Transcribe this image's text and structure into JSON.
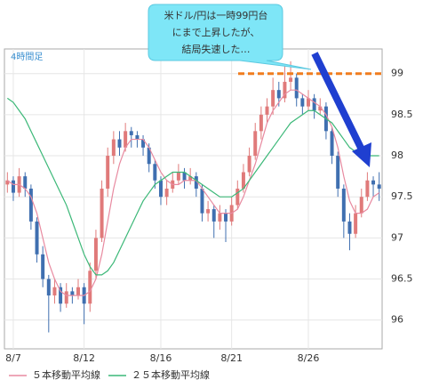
{
  "chart_data": {
    "type": "candlestick",
    "timeframe_label": "4時間足",
    "annotation": [
      "米ドル/円は一時99円台",
      "にまで上昇したが、",
      "結局失速した…"
    ],
    "reference_line": {
      "value": 99,
      "color": "#f07c1e"
    },
    "up_color": "#e07a7a",
    "down_color": "#3f6fb0",
    "categories": [
      null,
      "8/7",
      null,
      null,
      null,
      null,
      null,
      null,
      null,
      null,
      null,
      null,
      null,
      "8/12",
      null,
      null,
      null,
      null,
      null,
      null,
      null,
      null,
      null,
      null,
      null,
      null,
      "8/16",
      null,
      null,
      null,
      null,
      null,
      null,
      null,
      null,
      null,
      null,
      null,
      "8/21",
      null,
      null,
      null,
      null,
      null,
      null,
      null,
      null,
      null,
      null,
      null,
      null,
      "8/26",
      null,
      null,
      null,
      null,
      null,
      null,
      null,
      null,
      null,
      null,
      null,
      null
    ],
    "ohlc": [
      [
        97.65,
        97.8,
        97.55,
        97.7
      ],
      [
        97.7,
        97.75,
        97.45,
        97.55
      ],
      [
        97.55,
        97.85,
        97.5,
        97.75
      ],
      [
        97.75,
        97.8,
        97.5,
        97.6
      ],
      [
        97.6,
        97.65,
        97.1,
        97.2
      ],
      [
        97.2,
        97.25,
        96.7,
        96.8
      ],
      [
        96.8,
        96.9,
        96.4,
        96.5
      ],
      [
        96.5,
        96.55,
        95.85,
        96.3
      ],
      [
        96.3,
        96.5,
        96.2,
        96.4
      ],
      [
        96.4,
        96.45,
        96.1,
        96.2
      ],
      [
        96.2,
        96.45,
        96.15,
        96.35
      ],
      [
        96.35,
        96.4,
        96.2,
        96.3
      ],
      [
        96.3,
        96.5,
        96.25,
        96.4
      ],
      [
        96.4,
        96.45,
        95.95,
        96.2
      ],
      [
        96.2,
        96.7,
        96.1,
        96.6
      ],
      [
        96.6,
        97.1,
        96.5,
        97.0
      ],
      [
        97.0,
        97.7,
        96.95,
        97.6
      ],
      [
        97.6,
        98.1,
        97.5,
        98.0
      ],
      [
        98.0,
        98.3,
        97.9,
        98.2
      ],
      [
        98.2,
        98.3,
        98.0,
        98.1
      ],
      [
        98.1,
        98.4,
        98.05,
        98.3
      ],
      [
        98.3,
        98.35,
        98.1,
        98.25
      ],
      [
        98.25,
        98.3,
        98.1,
        98.2
      ],
      [
        98.2,
        98.25,
        98.0,
        98.1
      ],
      [
        98.1,
        98.15,
        97.8,
        97.9
      ],
      [
        97.9,
        97.95,
        97.6,
        97.7
      ],
      [
        97.7,
        97.75,
        97.4,
        97.5
      ],
      [
        97.5,
        97.7,
        97.4,
        97.6
      ],
      [
        97.6,
        97.8,
        97.55,
        97.7
      ],
      [
        97.7,
        97.9,
        97.65,
        97.8
      ],
      [
        97.8,
        97.85,
        97.6,
        97.7
      ],
      [
        97.7,
        97.85,
        97.65,
        97.75
      ],
      [
        97.75,
        97.8,
        97.5,
        97.6
      ],
      [
        97.6,
        97.65,
        97.2,
        97.3
      ],
      [
        97.3,
        97.45,
        97.2,
        97.35
      ],
      [
        97.35,
        97.4,
        97.0,
        97.2
      ],
      [
        97.2,
        97.4,
        97.1,
        97.3
      ],
      [
        97.3,
        97.35,
        96.95,
        97.2
      ],
      [
        97.2,
        97.5,
        97.15,
        97.4
      ],
      [
        97.4,
        97.7,
        97.35,
        97.6
      ],
      [
        97.6,
        97.9,
        97.55,
        97.8
      ],
      [
        97.8,
        98.1,
        97.75,
        98.0
      ],
      [
        98.0,
        98.4,
        97.95,
        98.3
      ],
      [
        98.3,
        98.6,
        98.2,
        98.5
      ],
      [
        98.5,
        98.7,
        98.4,
        98.6
      ],
      [
        98.6,
        98.95,
        98.5,
        98.8
      ],
      [
        98.8,
        98.9,
        98.6,
        98.7
      ],
      [
        98.7,
        99.1,
        98.65,
        98.9
      ],
      [
        98.9,
        99.15,
        98.8,
        98.95
      ],
      [
        98.95,
        99.0,
        98.6,
        98.7
      ],
      [
        98.7,
        98.75,
        98.5,
        98.6
      ],
      [
        98.6,
        98.8,
        98.55,
        98.7
      ],
      [
        98.7,
        98.75,
        98.45,
        98.55
      ],
      [
        98.55,
        98.7,
        98.5,
        98.6
      ],
      [
        98.6,
        98.65,
        98.2,
        98.3
      ],
      [
        98.3,
        98.35,
        97.9,
        98.0
      ],
      [
        98.0,
        98.05,
        97.5,
        97.6
      ],
      [
        97.6,
        97.65,
        97.0,
        97.2
      ],
      [
        97.2,
        97.3,
        96.85,
        97.05
      ],
      [
        97.05,
        97.4,
        97.0,
        97.3
      ],
      [
        97.3,
        97.6,
        97.25,
        97.5
      ],
      [
        97.5,
        97.8,
        97.45,
        97.7
      ],
      [
        97.7,
        97.75,
        97.5,
        97.65
      ],
      [
        97.65,
        97.8,
        97.45,
        97.6
      ]
    ],
    "series": [
      {
        "name": "５本移動平均線",
        "color": "#e88aa0",
        "values": [
          97.7,
          97.65,
          97.65,
          97.6,
          97.5,
          97.3,
          97.0,
          96.7,
          96.5,
          96.35,
          96.3,
          96.3,
          96.3,
          96.3,
          96.35,
          96.5,
          96.8,
          97.2,
          97.6,
          97.9,
          98.1,
          98.2,
          98.2,
          98.2,
          98.1,
          97.95,
          97.8,
          97.7,
          97.65,
          97.65,
          97.7,
          97.7,
          97.7,
          97.6,
          97.5,
          97.4,
          97.3,
          97.3,
          97.3,
          97.35,
          97.5,
          97.7,
          97.9,
          98.15,
          98.4,
          98.55,
          98.65,
          98.75,
          98.8,
          98.8,
          98.75,
          98.7,
          98.65,
          98.6,
          98.5,
          98.35,
          98.1,
          97.75,
          97.45,
          97.3,
          97.3,
          97.35,
          97.5,
          97.55
        ]
      },
      {
        "name": "２５本移動平均線",
        "color": "#3cb878",
        "values": [
          98.7,
          98.65,
          98.55,
          98.45,
          98.3,
          98.15,
          98.0,
          97.85,
          97.7,
          97.55,
          97.4,
          97.2,
          97.0,
          96.8,
          96.65,
          96.55,
          96.55,
          96.6,
          96.7,
          96.85,
          97.0,
          97.15,
          97.3,
          97.45,
          97.55,
          97.65,
          97.7,
          97.75,
          97.8,
          97.8,
          97.8,
          97.75,
          97.7,
          97.65,
          97.6,
          97.55,
          97.5,
          97.5,
          97.5,
          97.55,
          97.6,
          97.7,
          97.8,
          97.9,
          98.0,
          98.1,
          98.2,
          98.3,
          98.4,
          98.45,
          98.5,
          98.55,
          98.55,
          98.5,
          98.45,
          98.4,
          98.3,
          98.2,
          98.1,
          98.05,
          98.0,
          98.0,
          98.0,
          98.0
        ]
      }
    ],
    "ylim": [
      95.65,
      99.3
    ],
    "yticks": [
      96,
      96.5,
      97,
      97.5,
      98,
      98.5,
      99
    ],
    "grid": true
  }
}
